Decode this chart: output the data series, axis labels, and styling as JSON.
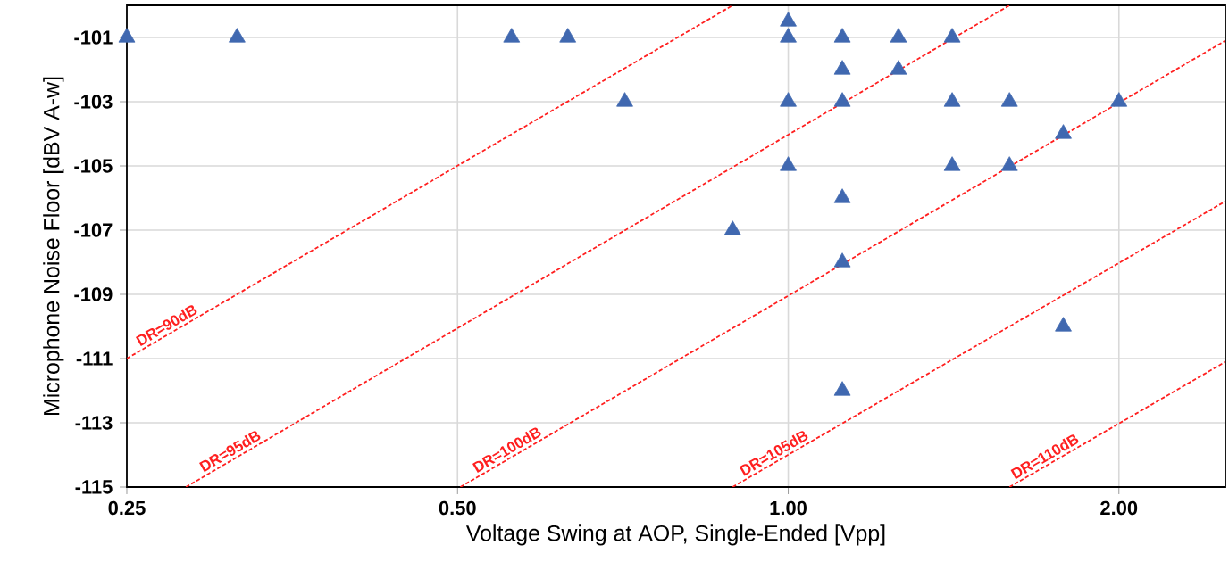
{
  "chart_data": {
    "type": "scatter",
    "xlabel": "Voltage Swing at AOP, Single-Ended [Vpp]",
    "ylabel": "Microphone Noise Floor [dBV A-w]",
    "log": "x",
    "grid": true,
    "xlim": [
      0.25,
      2.5
    ],
    "ylim": [
      -115,
      -100
    ],
    "xticks": [
      {
        "value": 0.25,
        "label": "0.25"
      },
      {
        "value": 0.5,
        "label": "0.50"
      },
      {
        "value": 1,
        "label": "1.00"
      },
      {
        "value": 2,
        "label": "2.00"
      }
    ],
    "yticks": [
      -101,
      -103,
      -105,
      -107,
      -109,
      -111,
      -113,
      -115
    ],
    "series": [
      {
        "marker": "triangle",
        "color": "#4068b0",
        "x": [
          0.25,
          0.315,
          0.56,
          0.63,
          0.71,
          1.0,
          1.0,
          1.0,
          1.0,
          1.12,
          1.12,
          1.12,
          1.12,
          1.12,
          1.12,
          1.26,
          1.26,
          1.41,
          1.41,
          1.41,
          1.59,
          1.59,
          1.78,
          1.78,
          2.0,
          0.89
        ],
        "values": [
          -101,
          -101,
          -101,
          -101,
          -103,
          -100.5,
          -101,
          -103,
          -105,
          -101,
          -102,
          -103,
          -106,
          -108,
          -112,
          -101,
          -102,
          -101,
          -103,
          -105,
          -103,
          -105,
          -104,
          -110,
          -103,
          -107
        ]
      },
      {
        "type": "line",
        "name": "DR=90dB",
        "color": "#ff2020",
        "line_style": "dashed",
        "x": [
          0.25,
          0.89
        ],
        "values": [
          -111,
          -100
        ]
      },
      {
        "type": "line",
        "name": "DR=95dB",
        "color": "#ff2020",
        "line_style": "dashed",
        "x": [
          0.283,
          1.59
        ],
        "values": [
          -115,
          -100
        ]
      },
      {
        "type": "line",
        "name": "DR=100dB",
        "color": "#ff2020",
        "line_style": "dashed",
        "x": [
          0.503,
          2.5
        ],
        "values": [
          -115,
          -101.1
        ]
      },
      {
        "type": "line",
        "name": "DR=105dB",
        "color": "#ff2020",
        "line_style": "dashed",
        "x": [
          0.89,
          2.5
        ],
        "values": [
          -115,
          -106.1
        ]
      },
      {
        "type": "line",
        "name": "DR=110dB",
        "color": "#ff2020",
        "line_style": "dashed",
        "x": [
          1.59,
          2.5
        ],
        "values": [
          -115,
          -111.1
        ]
      }
    ]
  }
}
